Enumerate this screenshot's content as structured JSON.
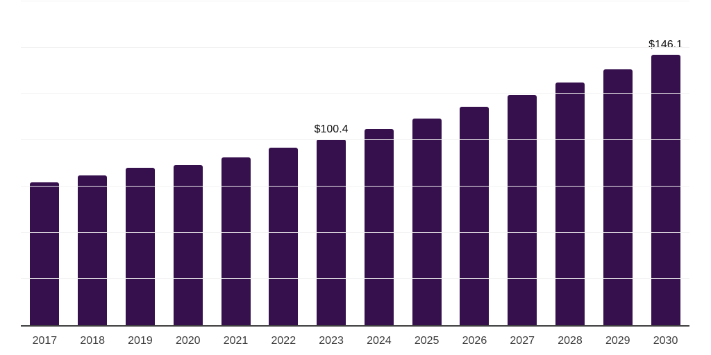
{
  "chart_data": {
    "type": "bar",
    "title": "",
    "xlabel": "",
    "ylabel": "",
    "categories": [
      "2017",
      "2018",
      "2019",
      "2020",
      "2021",
      "2022",
      "2023",
      "2024",
      "2025",
      "2026",
      "2027",
      "2028",
      "2029",
      "2030"
    ],
    "values": [
      77.3,
      80.9,
      85.1,
      86.7,
      90.8,
      95.8,
      100.4,
      105.9,
      111.7,
      117.9,
      124.4,
      131.2,
      138.4,
      146.1
    ],
    "bar_labels": [
      "",
      "",
      "",
      "",
      "",
      "",
      "$100.4",
      "",
      "",
      "",
      "",
      "",
      "",
      "$146.1"
    ],
    "ylim": [
      0,
      175
    ],
    "gridline_step": 25,
    "grid": true,
    "legend": false,
    "y_axis_tick_labels_visible": false,
    "colors": {
      "bar": "#36104D",
      "gridline": "#F2F2F2",
      "axis_line": "#3F3F3F",
      "tick_label": "#3B3B3B",
      "data_label": "#0F0F0F",
      "background": "#FFFFFF"
    }
  }
}
